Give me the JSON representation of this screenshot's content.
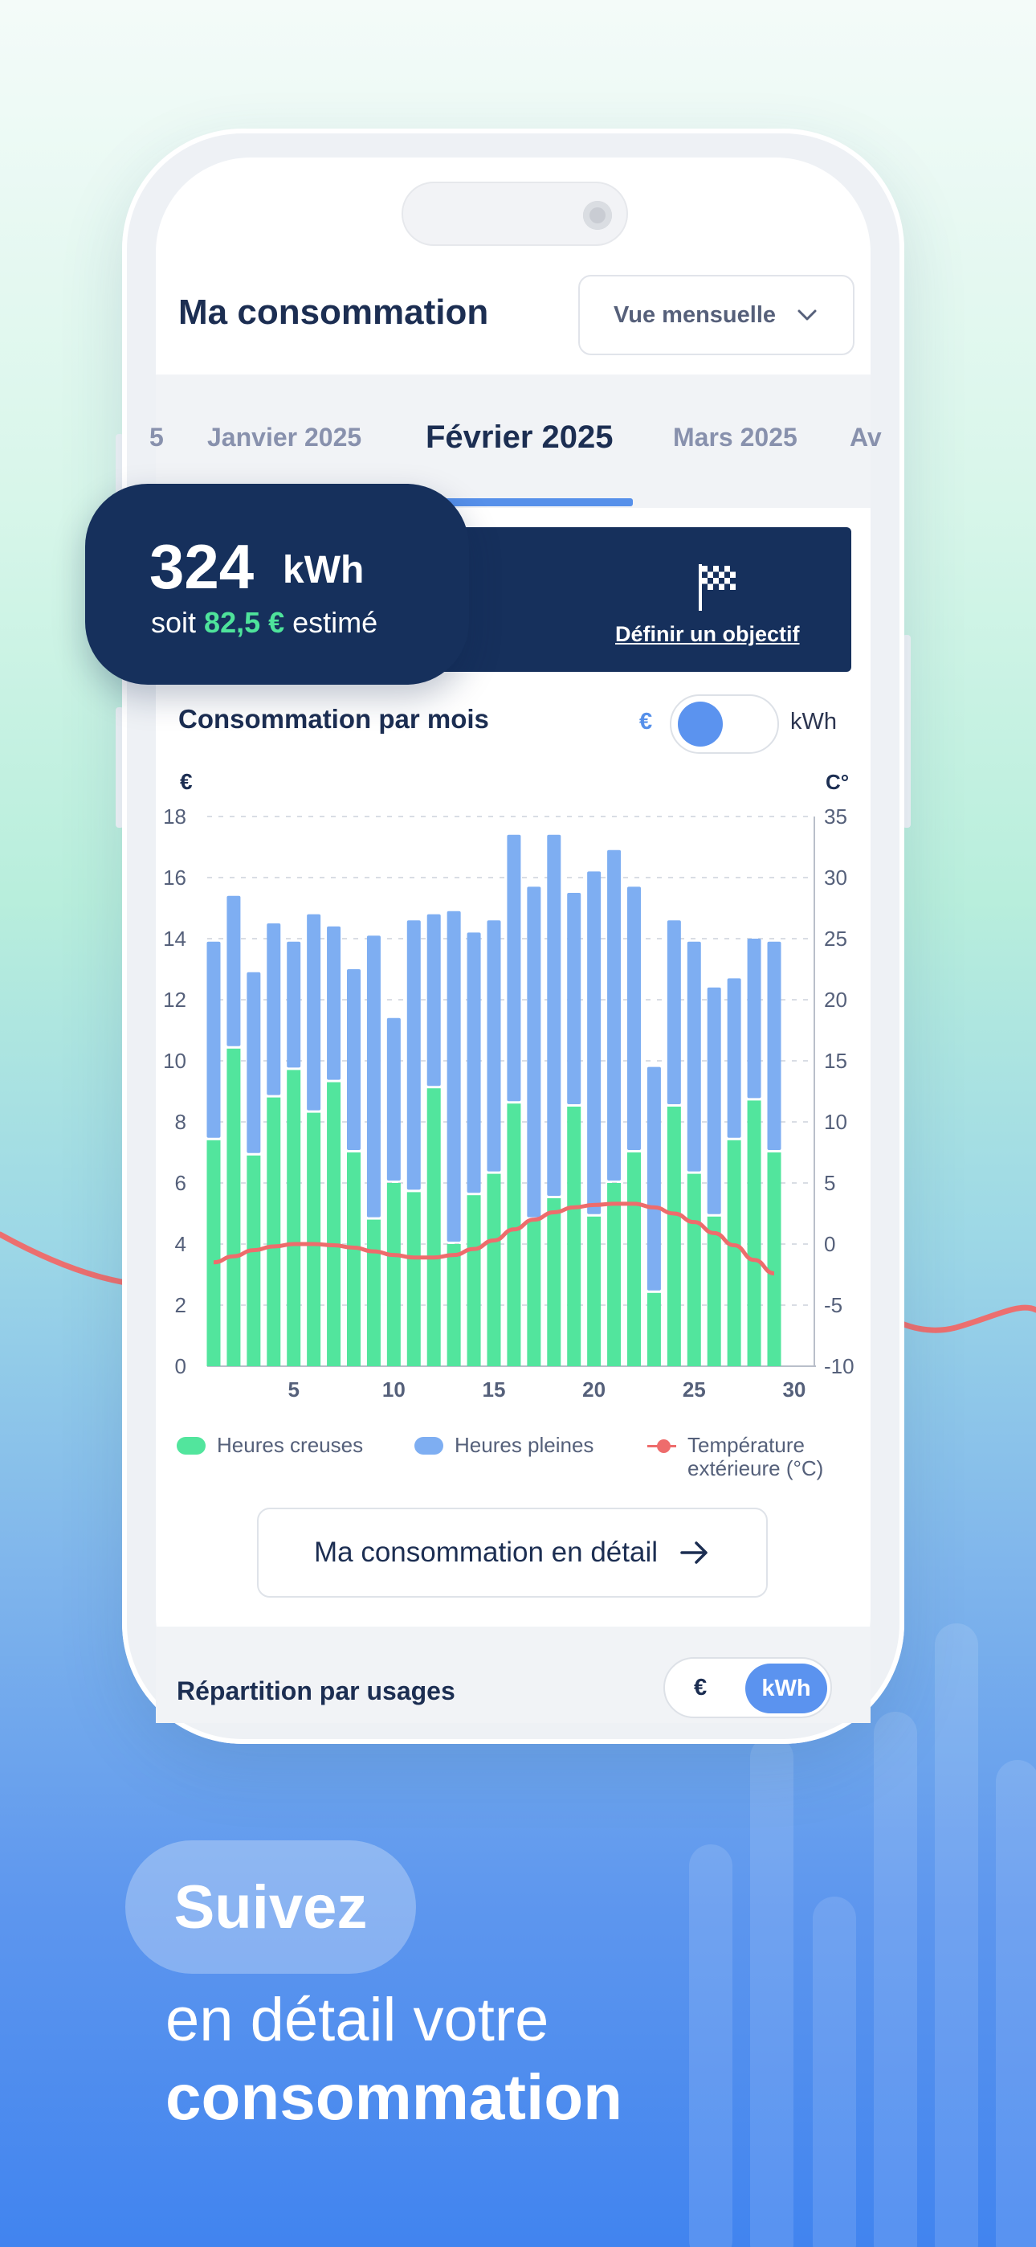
{
  "header": {
    "title": "Ma consommation",
    "view_select": "Vue mensuelle"
  },
  "month_tabs": [
    {
      "label": "5",
      "active": false
    },
    {
      "label": "Janvier 2025",
      "active": false
    },
    {
      "label": "Février 2025",
      "active": true
    },
    {
      "label": "Mars 2025",
      "active": false
    },
    {
      "label": "Av",
      "active": false
    }
  ],
  "stat_card": {
    "value": "324",
    "unit": "kWh",
    "prefix": "soit",
    "money": "82,5 €",
    "suffix": "estimé"
  },
  "goal": {
    "link": "Définir un objectif",
    "icon": "checkered-flag-icon"
  },
  "consumption": {
    "title": "Consommation par mois",
    "unit_eur": "€",
    "unit_kwh": "kWh",
    "toggle_state": "eur"
  },
  "chart_data": {
    "type": "bar",
    "stacked": true,
    "left_axis_label": "€",
    "right_axis_label": "C°",
    "ylim": [
      0,
      18
    ],
    "y_ticks": [
      0,
      2,
      4,
      6,
      8,
      10,
      12,
      14,
      16,
      18
    ],
    "y2lim": [
      -10,
      35
    ],
    "y2_ticks": [
      -10,
      -5,
      0,
      5,
      10,
      15,
      20,
      25,
      30,
      35
    ],
    "x_ticks": [
      5,
      10,
      15,
      20,
      25,
      30
    ],
    "x": [
      1,
      2,
      3,
      4,
      5,
      6,
      7,
      8,
      9,
      10,
      11,
      12,
      13,
      14,
      15,
      16,
      17,
      18,
      19,
      20,
      21,
      22,
      23,
      24,
      25,
      26,
      27,
      28,
      29
    ],
    "series": [
      {
        "name": "Heures creuses",
        "color": "#52e59d",
        "values": [
          7.4,
          10.4,
          6.9,
          8.8,
          9.7,
          8.3,
          9.3,
          7.0,
          4.8,
          6.0,
          5.7,
          9.1,
          4.0,
          5.6,
          6.3,
          8.6,
          4.8,
          5.5,
          8.5,
          4.9,
          6.0,
          7.0,
          2.4,
          8.5,
          6.3,
          4.9,
          7.4,
          8.7,
          7.0
        ]
      },
      {
        "name": "Heures pleines",
        "color": "#7eaef2",
        "values": [
          6.5,
          5.0,
          6.0,
          5.7,
          4.2,
          6.5,
          5.1,
          6.0,
          9.3,
          5.4,
          8.9,
          5.7,
          10.9,
          8.6,
          8.3,
          8.8,
          10.9,
          11.9,
          7.0,
          11.3,
          10.9,
          8.7,
          7.4,
          6.1,
          7.6,
          7.5,
          5.3,
          5.3,
          6.9
        ]
      },
      {
        "name": "Température extérieure (°C)",
        "color": "#ee6c6c",
        "type": "line",
        "values": [
          -1.5,
          -1.0,
          -0.5,
          -0.2,
          0.0,
          0.0,
          -0.1,
          -0.3,
          -0.6,
          -0.9,
          -1.1,
          -1.1,
          -0.9,
          -0.4,
          0.3,
          1.2,
          2.0,
          2.6,
          3.0,
          3.2,
          3.3,
          3.3,
          3.0,
          2.5,
          1.8,
          0.9,
          -0.1,
          -1.3,
          -2.4
        ]
      }
    ],
    "grid": true,
    "legend_position": "bottom"
  },
  "legend": {
    "off_peak": "Heures creuses",
    "peak": "Heures pleines",
    "temp_line1": "Température",
    "temp_line2": "extérieure (°C)"
  },
  "detail_button": {
    "label": "Ma consommation en détail"
  },
  "usage": {
    "title": "Répartition par usages",
    "unit_eur": "€",
    "unit_kwh": "kWh"
  },
  "tagline": {
    "pill": "Suivez",
    "line1": "en détail votre",
    "line2": "consommation"
  },
  "colors": {
    "navy": "#16305c",
    "accent_blue": "#5690ea",
    "green": "#52e59d",
    "bar_blue": "#7eaef2",
    "temp_red": "#ee6c6c"
  }
}
